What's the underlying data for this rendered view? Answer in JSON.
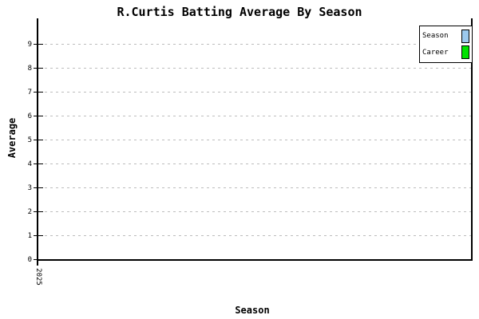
{
  "chart": {
    "title": "R.Curtis Batting Average By Season",
    "ylabel": "Average",
    "xlabel": "Season",
    "yticks": [
      "0",
      "1",
      "2",
      "3",
      "4",
      "5",
      "6",
      "7",
      "8",
      "9"
    ],
    "xticks": [
      "2025"
    ],
    "legend": [
      {
        "label": "Season",
        "color": "#9cc9ee"
      },
      {
        "label": "Career",
        "color": "#00e200"
      }
    ],
    "colors": {
      "background": "#ffffff",
      "axis": "#000000",
      "gridline": "#bdbdbd",
      "season_series": "#9cc9ee",
      "career_series": "#00e200"
    }
  },
  "chart_data": {
    "type": "bar",
    "title": "R.Curtis Batting Average By Season",
    "xlabel": "Season",
    "ylabel": "Average",
    "categories": [
      "2025"
    ],
    "series": [
      {
        "name": "Season",
        "color": "#9cc9ee",
        "values": [
          0
        ]
      },
      {
        "name": "Career",
        "color": "#00e200",
        "values": [
          0
        ]
      }
    ],
    "ylim": [
      0,
      9.7
    ],
    "yticks": [
      0,
      1,
      2,
      3,
      4,
      5,
      6,
      7,
      8,
      9
    ],
    "grid": "horizontal-dashed",
    "legend_position": "top-right",
    "note": "plot area is empty; no bars rendered for the 2025 category"
  }
}
